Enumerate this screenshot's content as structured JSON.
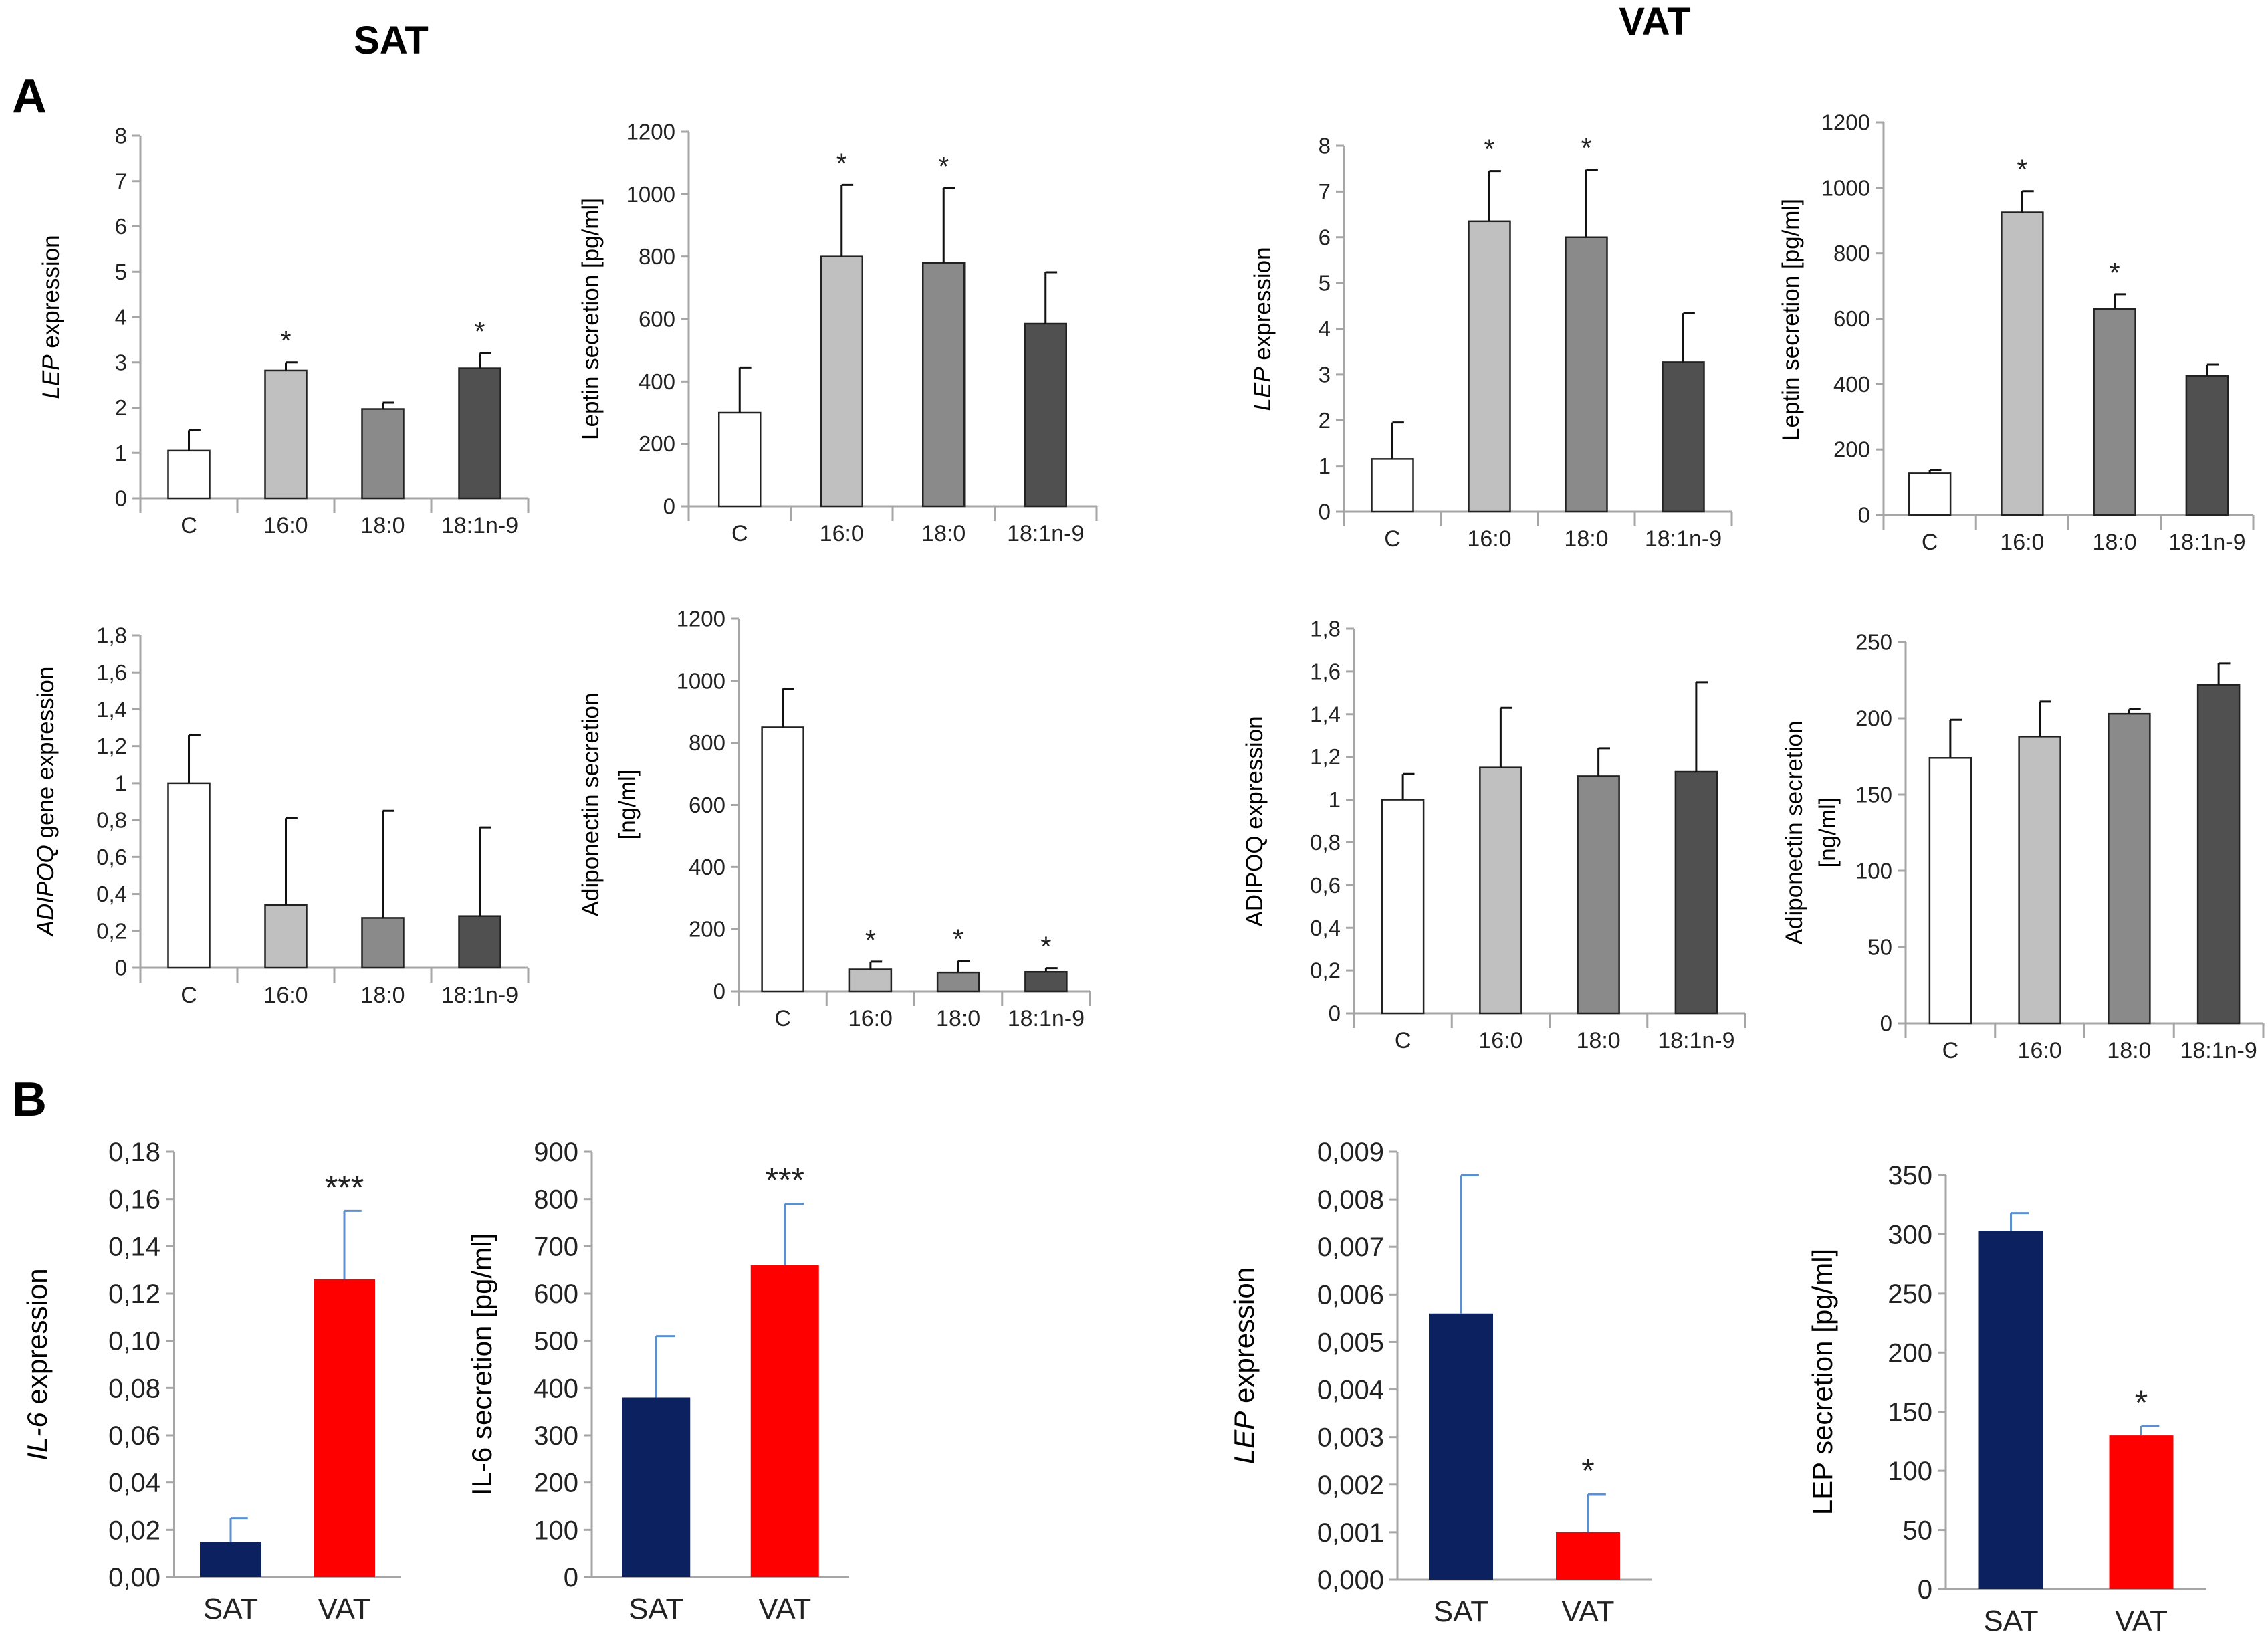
{
  "headings": {
    "sat": "SAT",
    "vat": "VAT"
  },
  "panel_labels": {
    "a": "A",
    "b": "B"
  },
  "colors": {
    "control": "#ffffff",
    "palmitic": "#c0c0c0",
    "stearic": "#8a8a8a",
    "oleic": "#505050",
    "sat": "#0b2160",
    "vat": "#ff0000",
    "axis": "#a6a6a6",
    "bar_edge": "#222222",
    "error_bar_gray": "#111111",
    "error_bar_blue": "#5b8fd0"
  },
  "chart_data": [
    {
      "id": "sat-lep-expression",
      "type": "bar",
      "title": "",
      "ylabel_italic": "LEP",
      "ylabel": " expression",
      "xlabel": "",
      "categories": [
        "C",
        "16:0",
        "18:0",
        "18:1n-9"
      ],
      "values": [
        1.05,
        2.82,
        1.97,
        2.87
      ],
      "errors": [
        0.45,
        0.18,
        0.14,
        0.33
      ],
      "significance": [
        "",
        "*",
        "",
        "*"
      ],
      "ylim": [
        0,
        8
      ],
      "yticks": [
        "0",
        "1",
        "2",
        "3",
        "4",
        "5",
        "6",
        "7",
        "8"
      ],
      "grid": false
    },
    {
      "id": "sat-leptin-secretion",
      "type": "bar",
      "title": "",
      "ylabel": "Leptin secretion [pg/ml]",
      "xlabel": "",
      "categories": [
        "C",
        "16:0",
        "18:0",
        "18:1n-9"
      ],
      "values": [
        300,
        800,
        780,
        585
      ],
      "errors": [
        145,
        230,
        240,
        165
      ],
      "significance": [
        "",
        "*",
        "*",
        ""
      ],
      "ylim": [
        0,
        1200
      ],
      "yticks": [
        "0",
        "200",
        "400",
        "600",
        "800",
        "1000",
        "1200"
      ],
      "grid": false
    },
    {
      "id": "vat-lep-expression",
      "type": "bar",
      "title": "",
      "ylabel_italic": "LEP",
      "ylabel": " expression",
      "xlabel": "",
      "categories": [
        "C",
        "16:0",
        "18:0",
        "18:1n-9"
      ],
      "values": [
        1.15,
        6.35,
        6.0,
        3.27
      ],
      "errors": [
        0.8,
        1.1,
        1.48,
        1.07
      ],
      "significance": [
        "",
        "*",
        "*",
        ""
      ],
      "ylim": [
        0,
        8
      ],
      "yticks": [
        "0",
        "1",
        "2",
        "3",
        "4",
        "5",
        "6",
        "7",
        "8"
      ],
      "grid": false
    },
    {
      "id": "vat-leptin-secretion",
      "type": "bar",
      "title": "",
      "ylabel": "Leptin secretion [pg/ml]",
      "xlabel": "",
      "categories": [
        "C",
        "16:0",
        "18:0",
        "18:1n-9"
      ],
      "values": [
        128,
        925,
        630,
        425
      ],
      "errors": [
        10,
        65,
        45,
        35
      ],
      "significance": [
        "",
        "*",
        "*",
        ""
      ],
      "ylim": [
        0,
        1200
      ],
      "yticks": [
        "0",
        "200",
        "400",
        "600",
        "800",
        "1000",
        "1200"
      ],
      "grid": false
    },
    {
      "id": "sat-adipoq-expression",
      "type": "bar",
      "title": "",
      "ylabel_italic": "ADIPOQ",
      "ylabel": " gene expression",
      "xlabel": "",
      "categories": [
        "C",
        "16:0",
        "18:0",
        "18:1n-9"
      ],
      "values": [
        1.0,
        0.34,
        0.27,
        0.28
      ],
      "errors": [
        0.26,
        0.47,
        0.58,
        0.48
      ],
      "significance": [
        "",
        "",
        "",
        ""
      ],
      "ylim": [
        0,
        1.8
      ],
      "yticks": [
        "0",
        "0,2",
        "0,4",
        "0,6",
        "0,8",
        "1",
        "1,2",
        "1,4",
        "1,6",
        "1,8"
      ],
      "grid": false
    },
    {
      "id": "sat-adiponectin-secretion",
      "type": "bar",
      "title": "",
      "ylabel": "Adiponectin secretion",
      "ylabel2": "[ng/ml]",
      "xlabel": "",
      "categories": [
        "C",
        "16:0",
        "18:0",
        "18:1n-9"
      ],
      "values": [
        850,
        70,
        60,
        62
      ],
      "errors": [
        125,
        25,
        38,
        12
      ],
      "significance": [
        "",
        "*",
        "*",
        "*"
      ],
      "ylim": [
        0,
        1200
      ],
      "yticks": [
        "0",
        "200",
        "400",
        "600",
        "800",
        "1000",
        "1200"
      ],
      "grid": false
    },
    {
      "id": "vat-adipoq-expression",
      "type": "bar",
      "title": "",
      "ylabel": "ADIPOQ expression",
      "xlabel": "",
      "categories": [
        "C",
        "16:0",
        "18:0",
        "18:1n-9"
      ],
      "values": [
        1.0,
        1.15,
        1.11,
        1.13
      ],
      "errors": [
        0.12,
        0.28,
        0.13,
        0.42
      ],
      "significance": [
        "",
        "",
        "",
        ""
      ],
      "ylim": [
        0,
        1.8
      ],
      "yticks": [
        "0",
        "0,2",
        "0,4",
        "0,6",
        "0,8",
        "1",
        "1,2",
        "1,4",
        "1,6",
        "1,8"
      ],
      "grid": false
    },
    {
      "id": "vat-adiponectin-secretion",
      "type": "bar",
      "title": "",
      "ylabel": "Adiponectin secretion",
      "ylabel2": "[ng/ml]",
      "xlabel": "",
      "categories": [
        "C",
        "16:0",
        "18:0",
        "18:1n-9"
      ],
      "values": [
        174,
        188,
        203,
        222
      ],
      "errors": [
        25,
        23,
        3,
        14
      ],
      "significance": [
        "",
        "",
        "",
        ""
      ],
      "ylim": [
        0,
        250
      ],
      "yticks": [
        "0",
        "50",
        "100",
        "150",
        "200",
        "250"
      ],
      "grid": false
    },
    {
      "id": "il6-expression",
      "type": "bar",
      "title": "",
      "ylabel_italic": "IL-6",
      "ylabel": " expression",
      "xlabel": "",
      "categories": [
        "SAT",
        "VAT"
      ],
      "values": [
        0.015,
        0.126
      ],
      "errors": [
        0.01,
        0.029
      ],
      "significance": [
        "",
        "***"
      ],
      "ylim": [
        0,
        0.18
      ],
      "yticks": [
        "0,00",
        "0,02",
        "0,04",
        "0,06",
        "0,08",
        "0,10",
        "0,12",
        "0,14",
        "0,16",
        "0,18"
      ],
      "grid": false
    },
    {
      "id": "il6-secretion",
      "type": "bar",
      "title": "",
      "ylabel": "IL-6 secretion [pg/ml]",
      "xlabel": "",
      "categories": [
        "SAT",
        "VAT"
      ],
      "values": [
        380,
        660
      ],
      "errors": [
        130,
        130
      ],
      "significance": [
        "",
        "***"
      ],
      "ylim": [
        0,
        900
      ],
      "yticks": [
        "0",
        "100",
        "200",
        "300",
        "400",
        "500",
        "600",
        "700",
        "800",
        "900"
      ],
      "grid": false
    },
    {
      "id": "lep-expression-sat-vat",
      "type": "bar",
      "title": "",
      "ylabel_italic": "LEP",
      "ylabel": " expression",
      "xlabel": "",
      "categories": [
        "SAT",
        "VAT"
      ],
      "values": [
        0.0056,
        0.001
      ],
      "errors": [
        0.0029,
        0.0008
      ],
      "significance": [
        "",
        "*"
      ],
      "ylim": [
        0,
        0.009
      ],
      "yticks": [
        "0,000",
        "0,001",
        "0,002",
        "0,003",
        "0,004",
        "0,005",
        "0,006",
        "0,007",
        "0,008",
        "0,009"
      ],
      "grid": false
    },
    {
      "id": "lep-secretion-sat-vat",
      "type": "bar",
      "title": "",
      "ylabel": "LEP secretion [pg/ml]",
      "xlabel": "",
      "categories": [
        "SAT",
        "VAT"
      ],
      "values": [
        303,
        130
      ],
      "errors": [
        15,
        8
      ],
      "significance": [
        "",
        "*"
      ],
      "ylim": [
        0,
        350
      ],
      "yticks": [
        "0",
        "50",
        "100",
        "150",
        "200",
        "250",
        "300",
        "350"
      ],
      "grid": false
    }
  ]
}
